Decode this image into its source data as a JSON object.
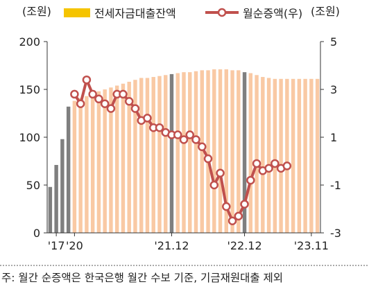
{
  "chart_data": {
    "type": "bar+line",
    "left_unit": "(조원)",
    "right_unit": "(조원)",
    "left_ticks": [
      "0",
      "50",
      "100",
      "150",
      "200"
    ],
    "left_range": [
      0,
      200
    ],
    "right_ticks": [
      "-3",
      "-1",
      "1",
      "3",
      "5"
    ],
    "right_range": [
      -3,
      5
    ],
    "x_tick_labels": [
      "'17",
      "'20",
      "'21.12",
      "'22.12",
      "'23.11"
    ],
    "x_tick_positions": [
      1,
      4,
      20,
      32,
      43
    ],
    "legend": {
      "bar_label": "전세자금대출잔액",
      "line_label": "월순증액(우)"
    },
    "colors": {
      "bar": "#F9C9A4",
      "bar_highlight": "#7F7F7F",
      "legend_bar": "#F5C400",
      "line": "#C0504D",
      "marker_fill": "#ffffff",
      "axis": "#333333",
      "grid": "#BFBFBF"
    },
    "bar_values": [
      48,
      71,
      98,
      132,
      138,
      141,
      143,
      146,
      148,
      150,
      152,
      154,
      156,
      158,
      160,
      162,
      162,
      163,
      164,
      165,
      166,
      167,
      168,
      168,
      169,
      170,
      170,
      171,
      171,
      171,
      170,
      170,
      168,
      167,
      165,
      163,
      162,
      161,
      161,
      161,
      161,
      161,
      161,
      161,
      161
    ],
    "bar_highlight_index": [
      0,
      1,
      2,
      3,
      20,
      32
    ],
    "line_start_index": 4,
    "line_values": [
      2.8,
      2.4,
      3.4,
      2.8,
      2.6,
      2.4,
      2.2,
      2.8,
      2.8,
      2.5,
      2.2,
      1.7,
      1.8,
      1.4,
      1.4,
      1.2,
      1.1,
      1.1,
      0.9,
      1.1,
      0.9,
      0.6,
      0.1,
      -1.0,
      -0.5,
      -1.9,
      -2.5,
      -2.3,
      -1.8,
      -0.8,
      -0.1,
      -0.4,
      -0.3,
      -0.1,
      -0.3,
      -0.2
    ],
    "footnote": "주: 월간 순증액은 한국은행 월간 수보 기준, 기금재원대출 제외"
  }
}
